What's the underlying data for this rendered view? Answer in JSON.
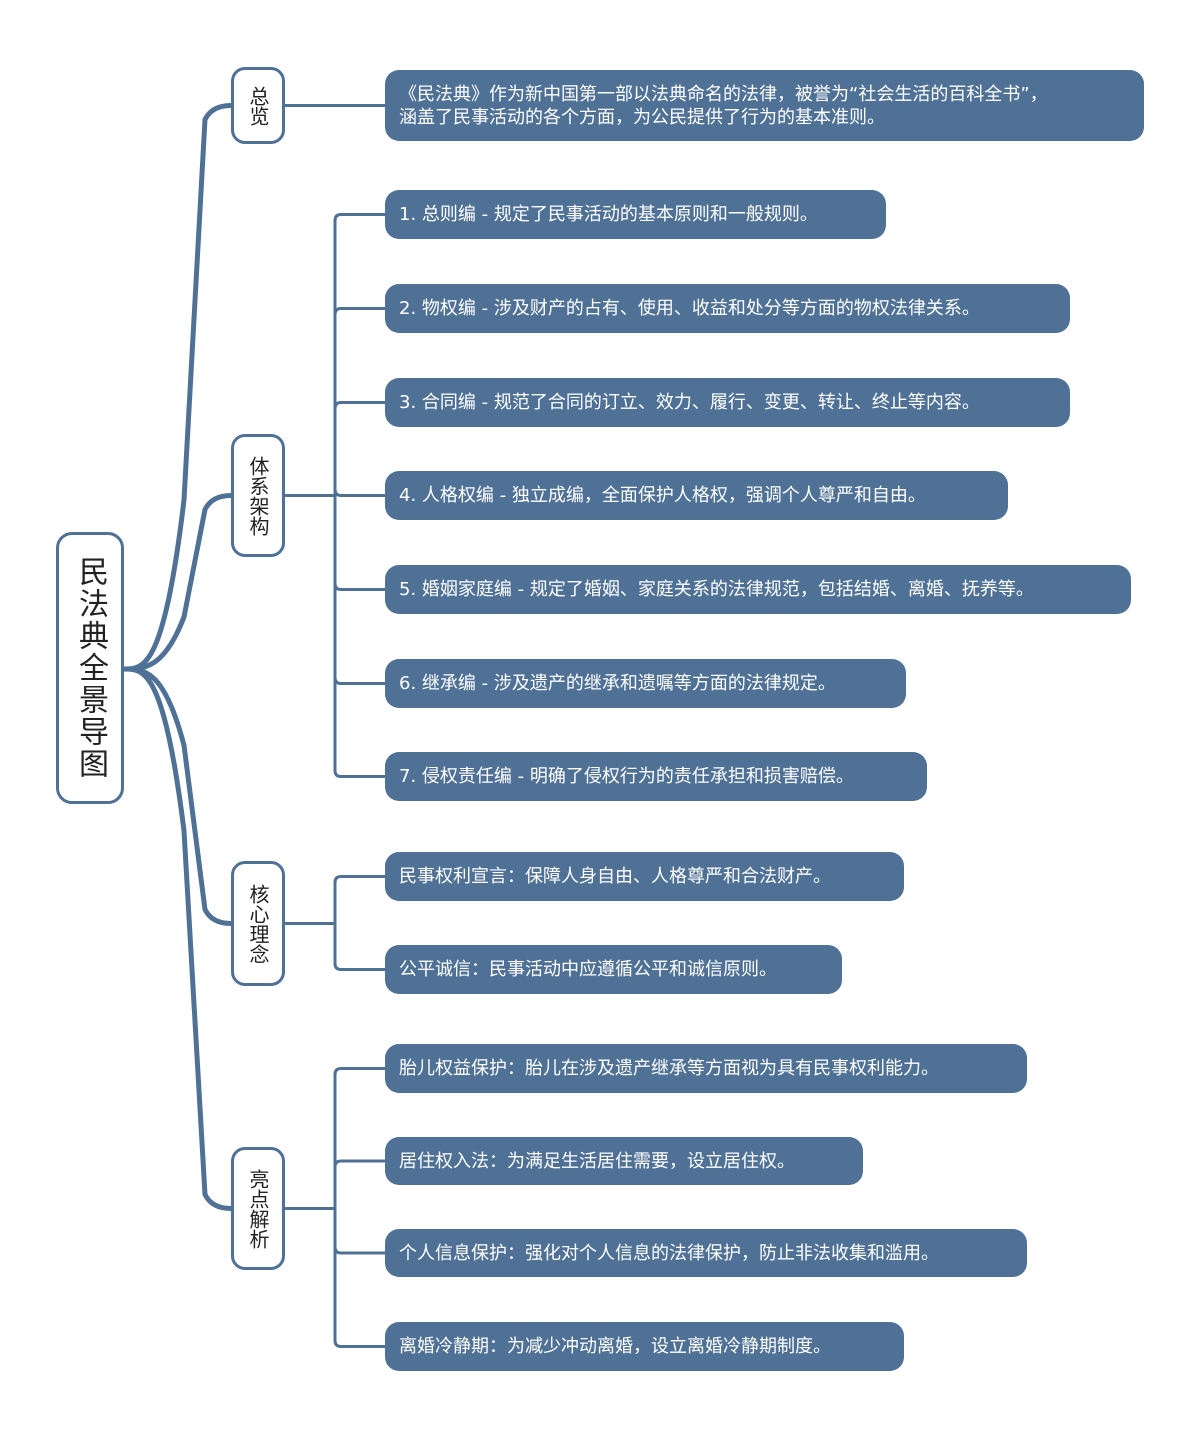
{
  "root": {
    "label": "民法典全景导图"
  },
  "colors": {
    "accent": "#4f7196",
    "text_light": "#ffffff"
  },
  "branches": [
    {
      "label": "总览",
      "items": [
        "《民法典》作为新中国第一部以法典命名的法律，被誉为“社会生活的百科全书”，\n涵盖了民事活动的各个方面，为公民提供了行为的基本准则。"
      ]
    },
    {
      "label": "体系架构",
      "items": [
        "1. 总则编 - 规定了民事活动的基本原则和一般规则。",
        "2. 物权编 - 涉及财产的占有、使用、收益和处分等方面的物权法律关系。",
        "3. 合同编 - 规范了合同的订立、效力、履行、变更、转让、终止等内容。",
        "4. 人格权编 - 独立成编，全面保护人格权，强调个人尊严和自由。",
        "5. 婚姻家庭编 - 规定了婚姻、家庭关系的法律规范，包括结婚、离婚、抚养等。",
        "6. 继承编 - 涉及遗产的继承和遗嘱等方面的法律规定。",
        "7. 侵权责任编 - 明确了侵权行为的责任承担和损害赔偿。"
      ]
    },
    {
      "label": "核心理念",
      "items": [
        "民事权利宣言：保障人身自由、人格尊严和合法财产。",
        "公平诚信：民事活动中应遵循公平和诚信原则。"
      ]
    },
    {
      "label": "亮点解析",
      "items": [
        "胎儿权益保护：胎儿在涉及遗产继承等方面视为具有民事权利能力。",
        "居住权入法：为满足生活居住需要，设立居住权。",
        "个人信息保护：强化对个人信息的法律保护，防止非法收集和滥用。",
        "离婚冷静期：为减少冲动离婚，设立离婚冷静期制度。"
      ]
    }
  ]
}
